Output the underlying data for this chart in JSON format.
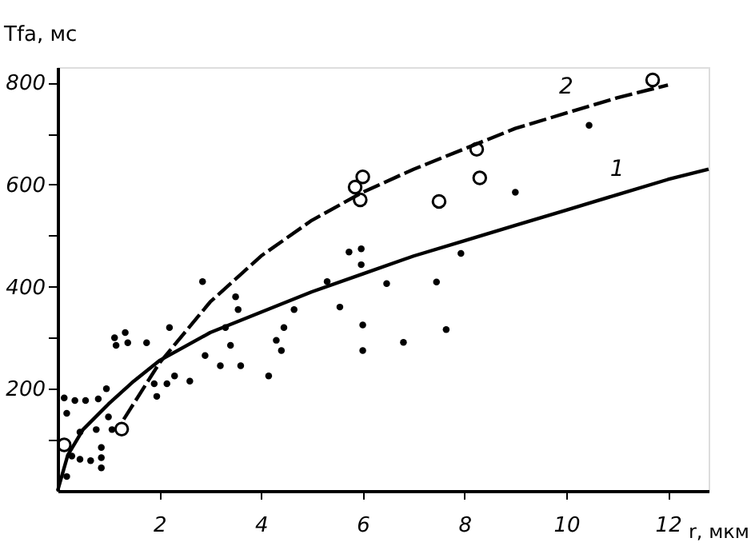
{
  "chart_data": {
    "type": "line",
    "xlabel": "r, мкм",
    "ylabel": "Tfa, мс",
    "xlim": [
      0,
      12.8
    ],
    "ylim": [
      0,
      830
    ],
    "xticks": [
      2,
      4,
      6,
      8,
      10,
      12
    ],
    "yticks": [
      {
        "value": 100,
        "label": null
      },
      200,
      {
        "value": 300,
        "label": null
      },
      400,
      {
        "value": 500,
        "label": null
      },
      600,
      {
        "value": 700,
        "label": null
      },
      800
    ],
    "grid": false,
    "series": [
      {
        "name": "1",
        "color": "#000000",
        "line_style": "solid",
        "x": [
          0,
          0.2,
          0.5,
          1,
          1.5,
          2,
          3,
          4,
          5,
          6,
          7,
          8,
          9,
          10,
          11,
          12,
          12.8
        ],
        "values": [
          0,
          70,
          120,
          170,
          215,
          255,
          310,
          350,
          390,
          425,
          460,
          490,
          520,
          550,
          580,
          610,
          630
        ]
      },
      {
        "name": "2",
        "color": "#000000",
        "line_style": "dashed",
        "x": [
          1.3,
          2,
          3,
          4,
          5,
          6,
          7,
          8,
          9,
          10,
          11,
          12
        ],
        "values": [
          140,
          250,
          370,
          460,
          530,
          585,
          630,
          670,
          710,
          740,
          770,
          795
        ]
      },
      {
        "type": "scatter",
        "color": "#000000",
        "marker": "circle",
        "x": [
          0.13,
          1.26,
          5.85,
          6.0,
          5.95,
          7.5,
          8.24,
          8.3,
          11.7
        ],
        "values": [
          90,
          121,
          595,
          615,
          570,
          567,
          669,
          613,
          805
        ]
      },
      {
        "type": "scatter",
        "color": "#000000",
        "x": [
          0.13,
          0.18,
          0.34,
          0.55,
          0.44,
          0.28,
          0.18,
          0.44,
          0.65,
          0.8,
          0.96,
          0.76,
          0.86,
          0.86,
          0.86,
          1.0,
          1.07,
          1.12,
          1.33,
          1.38,
          1.15,
          1.75,
          1.9,
          1.95,
          2.15,
          2.2,
          2.3,
          2.6,
          2.85,
          2.9,
          3.2,
          3.3,
          3.4,
          3.5,
          3.55,
          3.6,
          4.15,
          4.3,
          4.45,
          4.4,
          4.65,
          5.3,
          5.55,
          6.0,
          6.0,
          5.73,
          5.97,
          5.97,
          6.47,
          6.8,
          7.45,
          7.64,
          7.93,
          9.0,
          10.45
        ],
        "values": [
          182,
          152,
          177,
          177,
          115,
          68,
          28,
          62,
          59,
          180,
          200,
          120,
          85,
          65,
          45,
          145,
          120,
          300,
          310,
          290,
          285,
          290,
          210,
          185,
          210,
          320,
          225,
          215,
          410,
          265,
          245,
          320,
          285,
          380,
          355,
          245,
          225,
          295,
          320,
          275,
          355,
          410,
          360,
          325,
          275,
          468,
          474,
          443,
          406,
          291,
          409,
          316,
          465,
          585,
          716
        ]
      }
    ]
  }
}
